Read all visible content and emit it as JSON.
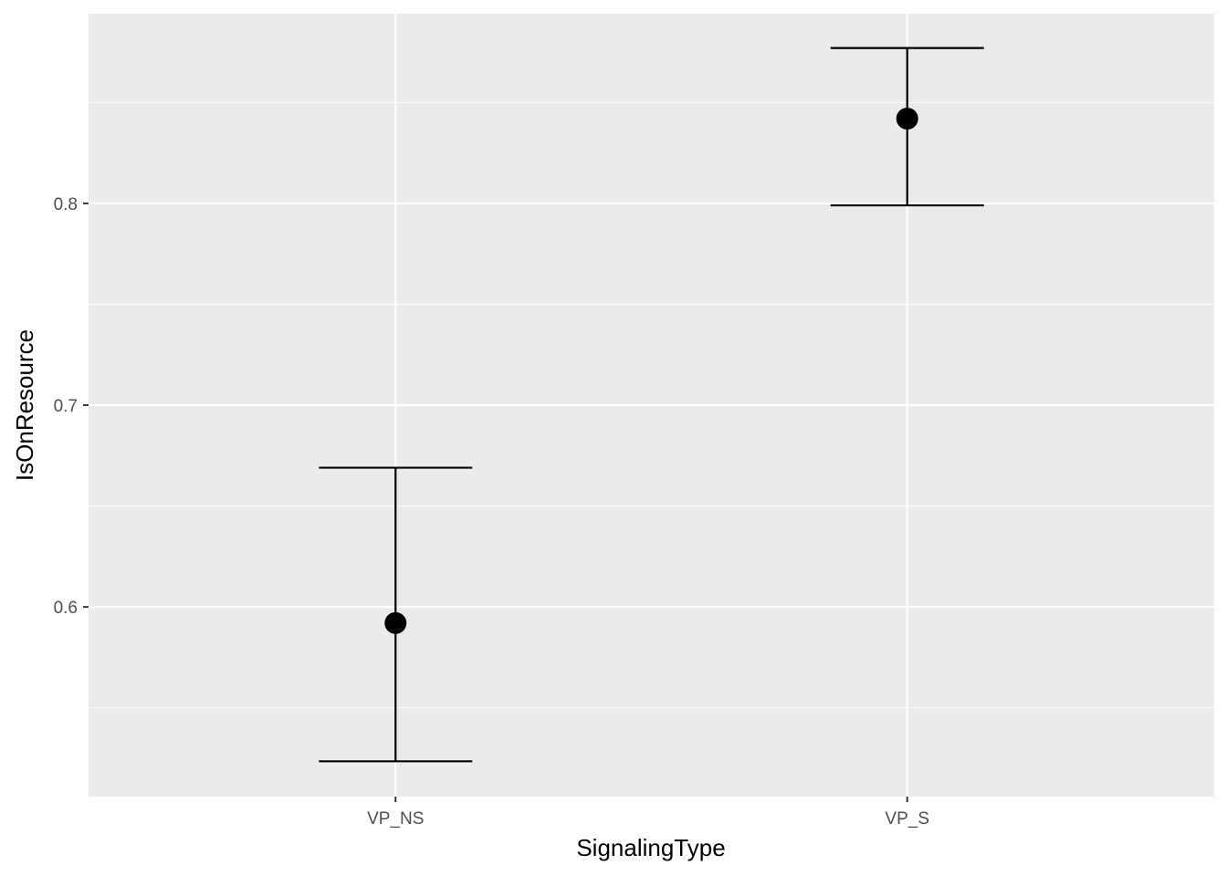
{
  "chart_data": {
    "type": "scatter",
    "subtype": "pointrange-errorbar",
    "title": "",
    "xlabel": "SignalingType",
    "ylabel": "IsOnResource",
    "categories": [
      "VP_NS",
      "VP_S"
    ],
    "series": [
      {
        "name": "IsOnResource",
        "values": [
          0.592,
          0.842
        ],
        "lower": [
          0.5235,
          0.799
        ],
        "upper": [
          0.669,
          0.877
        ]
      }
    ],
    "ylim": [
      0.506,
      0.894
    ],
    "yticks": [
      0.6,
      0.7,
      0.8
    ],
    "ytick_labels": [
      "0.6",
      "0.7",
      "0.8"
    ],
    "yminor": [
      0.55,
      0.65,
      0.75,
      0.85
    ],
    "grid": true,
    "legend": "none",
    "colors": {
      "panel": "#EBEBEB",
      "grid": "#FFFFFF",
      "mark": "#000000",
      "text": "#4D4D4D"
    }
  }
}
